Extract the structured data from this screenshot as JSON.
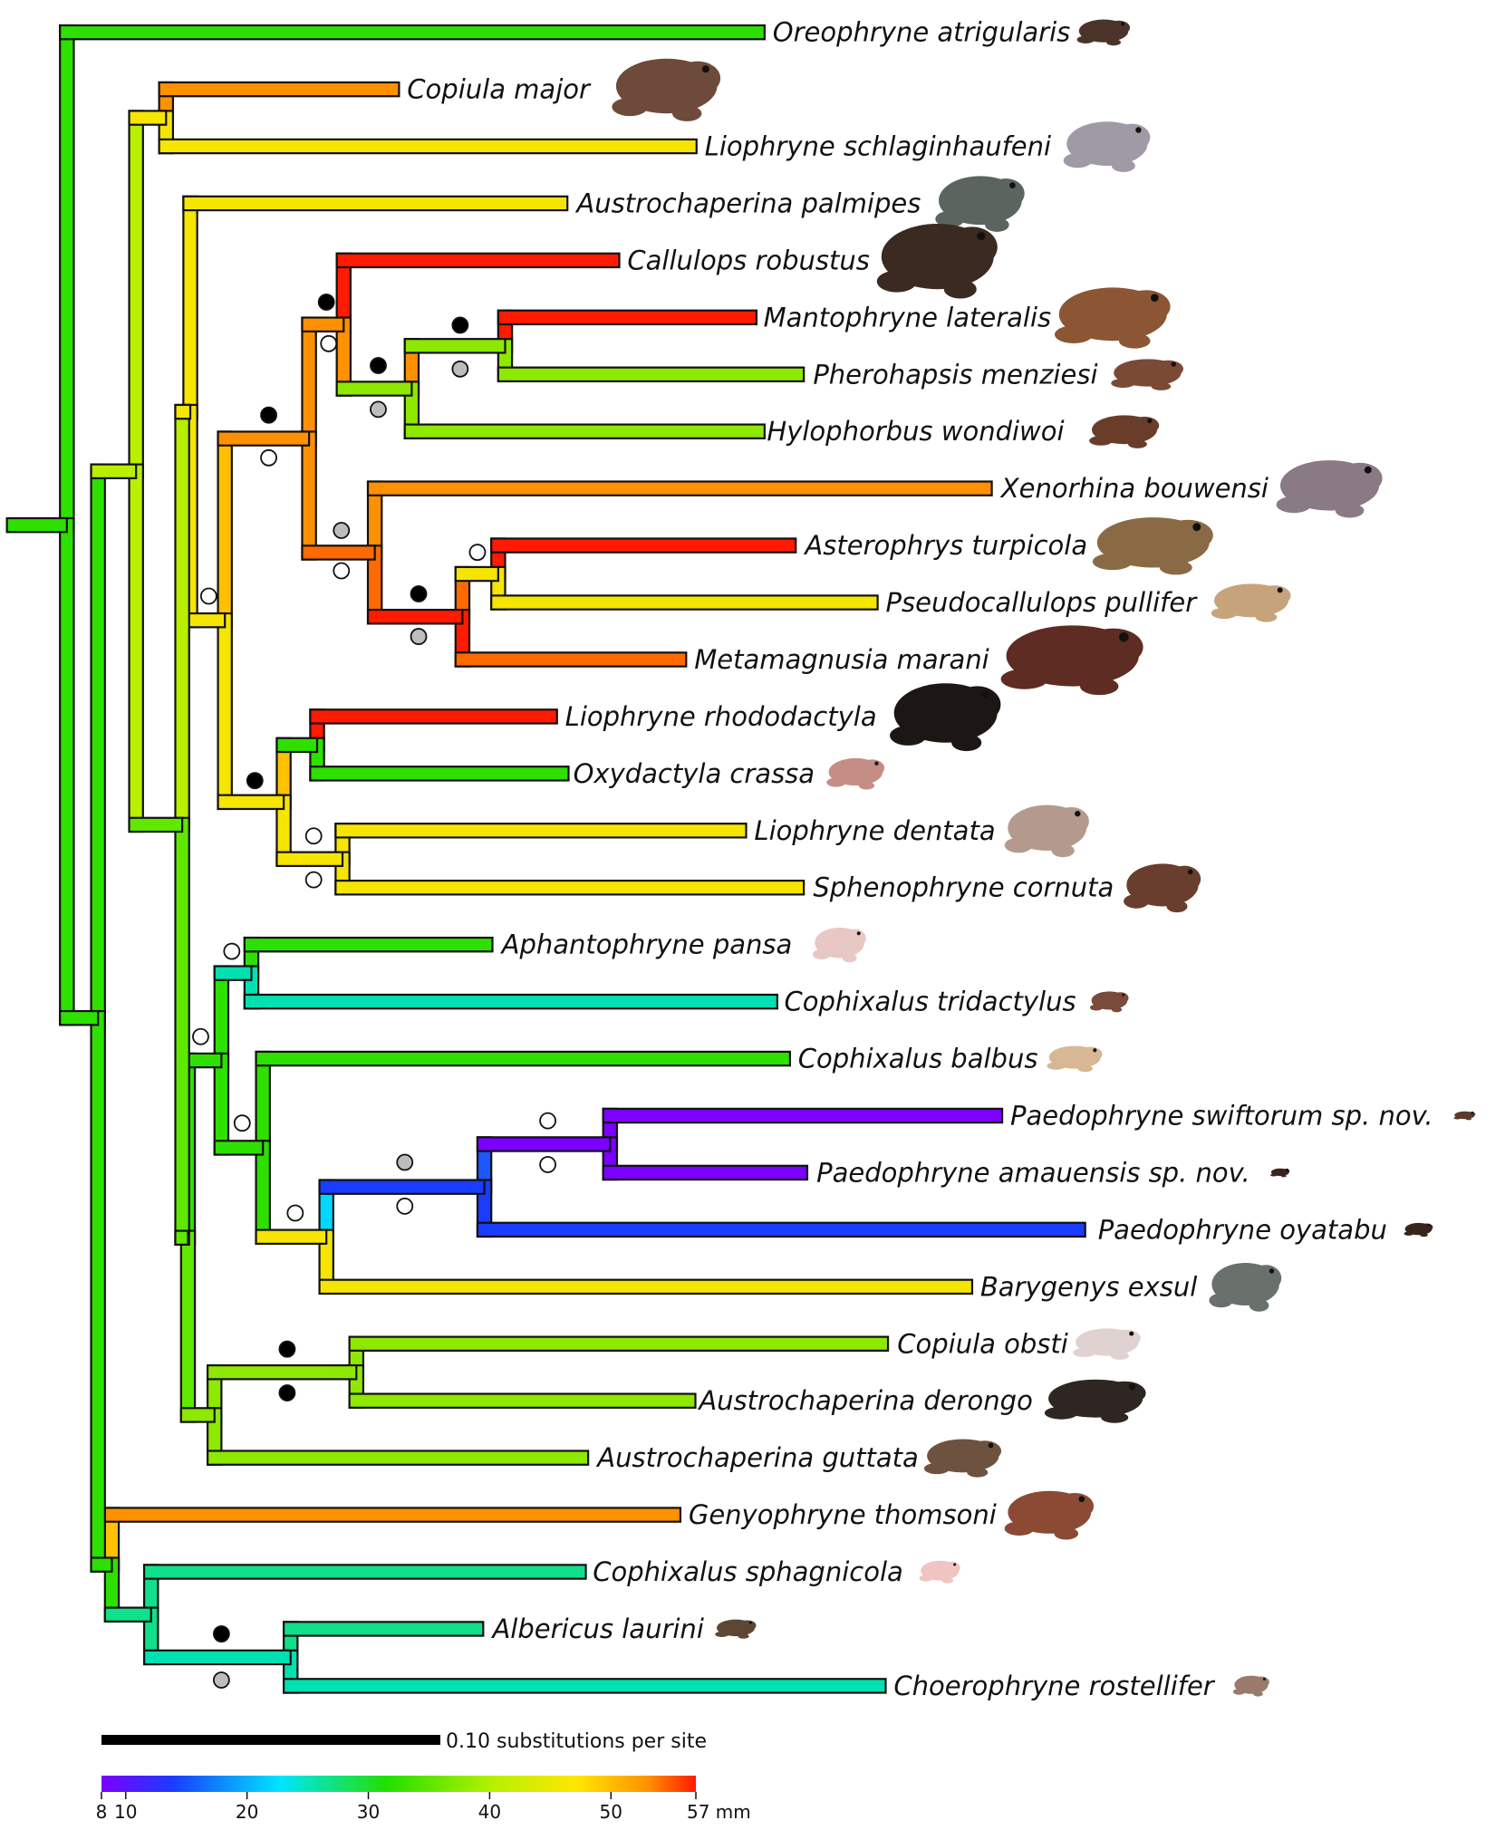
{
  "figure": {
    "scale_bar_label": "0.10 substitutions per site",
    "colorbar": {
      "ticks": [
        "8",
        "10",
        "20",
        "30",
        "40",
        "50",
        "57 mm"
      ],
      "tick_values": [
        8,
        10,
        20,
        30,
        40,
        50,
        57
      ]
    },
    "taxa": [
      {
        "name": "Oreophryne atrigularis"
      },
      {
        "name": "Copiula major"
      },
      {
        "name": "Liophryne schlaginhaufeni"
      },
      {
        "name": "Austrochaperina palmipes"
      },
      {
        "name": "Callulops robustus"
      },
      {
        "name": "Mantophryne lateralis"
      },
      {
        "name": "Pherohapsis menziesi"
      },
      {
        "name": "Hylophorbus wondiwoi"
      },
      {
        "name": "Xenorhina bouwensi"
      },
      {
        "name": "Asterophrys turpicola"
      },
      {
        "name": "Pseudocallulops pullifer"
      },
      {
        "name": "Metamagnusia marani"
      },
      {
        "name": "Liophryne rhododactyla"
      },
      {
        "name": "Oxydactyla crassa"
      },
      {
        "name": "Liophryne dentata"
      },
      {
        "name": "Sphenophryne cornuta"
      },
      {
        "name": "Aphantophryne pansa"
      },
      {
        "name": "Cophixalus tridactylus"
      },
      {
        "name": "Cophixalus balbus"
      },
      {
        "name": "Paedophryne swiftorum sp. nov."
      },
      {
        "name": "Paedophryne amauensis sp. nov."
      },
      {
        "name": "Paedophryne oyatabu"
      },
      {
        "name": "Barygenys exsul"
      },
      {
        "name": "Copiula obsti"
      },
      {
        "name": "Austrochaperina derongo"
      },
      {
        "name": "Austrochaperina guttata"
      },
      {
        "name": "Genyophryne thomsoni"
      },
      {
        "name": "Cophixalus sphagnicola"
      },
      {
        "name": "Albericus laurini"
      },
      {
        "name": "Choerophryne rostellifer"
      }
    ]
  }
}
